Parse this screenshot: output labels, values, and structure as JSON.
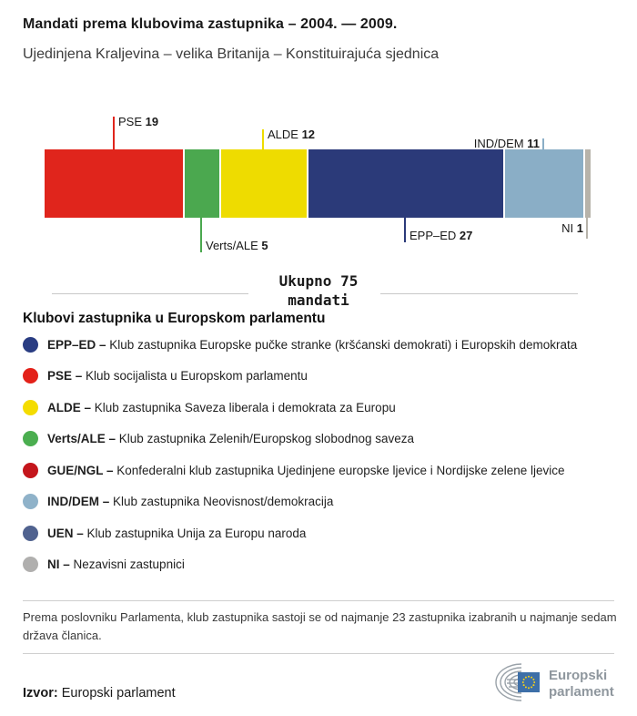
{
  "header": {
    "title": "Mandati prema klubovima zastupnika – 2004. — 2009.",
    "subtitle": "Ujedinjena Kraljevina – velika Britanija – Konstituirajuća sjednica"
  },
  "chart_data": {
    "type": "bar",
    "orientation": "horizontal-stacked",
    "title": "Mandati prema klubovima zastupnika – 2004. — 2009.",
    "subtitle": "Ujedinjena Kraljevina – velika Britanija – Konstituirajuća sjednica",
    "total": 75,
    "total_label_line1": "Ukupno 75",
    "total_label_line2": "mandati",
    "categories": [
      "PSE",
      "Verts/ALE",
      "ALDE",
      "EPP–ED",
      "IND/DEM",
      "NI"
    ],
    "values": [
      19,
      5,
      12,
      27,
      11,
      1
    ],
    "segments": [
      {
        "name": "PSE",
        "value": 19,
        "color": "#e0251c",
        "annotation": {
          "side": "above",
          "line_len": 36,
          "label_side": "right",
          "label_dy": -38
        }
      },
      {
        "name": "Verts/ALE",
        "value": 5,
        "color": "#4ba84f",
        "annotation": {
          "side": "below",
          "line_len": 38,
          "label_side": "right",
          "label_dy": 23
        }
      },
      {
        "name": "ALDE",
        "value": 12,
        "color": "#eedc00",
        "annotation": {
          "side": "above",
          "line_len": 22,
          "label_side": "right",
          "label_dy": -24
        }
      },
      {
        "name": "EPP–ED",
        "value": 27,
        "color": "#2b3a79",
        "annotation": {
          "side": "below",
          "line_len": 27,
          "label_side": "right",
          "label_dy": 12
        }
      },
      {
        "name": "IND/DEM",
        "value": 11,
        "color": "#8aaec6",
        "annotation": {
          "side": "above",
          "line_len": 12,
          "label_side": "left",
          "label_dy": -14
        }
      },
      {
        "name": "NI",
        "value": 1,
        "color": "#b7b3aa",
        "annotation": {
          "side": "below",
          "line_len": 23,
          "label_side": "left",
          "label_dy": 4
        }
      }
    ]
  },
  "legend": {
    "heading": "Klubovi zastupnika u Europskom parlamentu",
    "items": [
      {
        "label": "EPP–ED –",
        "desc": "Klub zastupnika Europske pučke stranke (kršćanski demokrati) i Europskih demokrata",
        "color": "#293c82"
      },
      {
        "label": "PSE –",
        "desc": "Klub socijalista u Europskom parlamentu",
        "color": "#e32119"
      },
      {
        "label": "ALDE –",
        "desc": "Klub zastupnika Saveza liberala i demokrata za Europu",
        "color": "#f4dc00"
      },
      {
        "label": "Verts/ALE –",
        "desc": "Klub zastupnika Zelenih/Europskog slobodnog saveza",
        "color": "#4bae50"
      },
      {
        "label": "GUE/NGL –",
        "desc": "Konfederalni klub zastupnika Ujedinjene europske ljevice i Nordijske zelene ljevice",
        "color": "#c4161c"
      },
      {
        "label": "IND/DEM –",
        "desc": "Klub zastupnika Neovisnost/demokracija",
        "color": "#8fb2c9"
      },
      {
        "label": "UEN –",
        "desc": "Klub zastupnika Unija za Europu naroda",
        "color": "#50628f"
      },
      {
        "label": "NI –",
        "desc": "Nezavisni zastupnici",
        "color": "#b0afae"
      }
    ]
  },
  "note": "Prema poslovniku Parlamenta, klub zastupnika sastoji se od najmanje 23 zastupnika izabranih u najmanje sedam država članica.",
  "footer": {
    "source_label": "Izvor:",
    "source": "Europski parlament",
    "logo_line1": "Europski",
    "logo_line2": "parlament",
    "logo_flag_color": "#3d6fa8",
    "logo_star_color": "#f7d117",
    "logo_gray": "#8f979e"
  }
}
